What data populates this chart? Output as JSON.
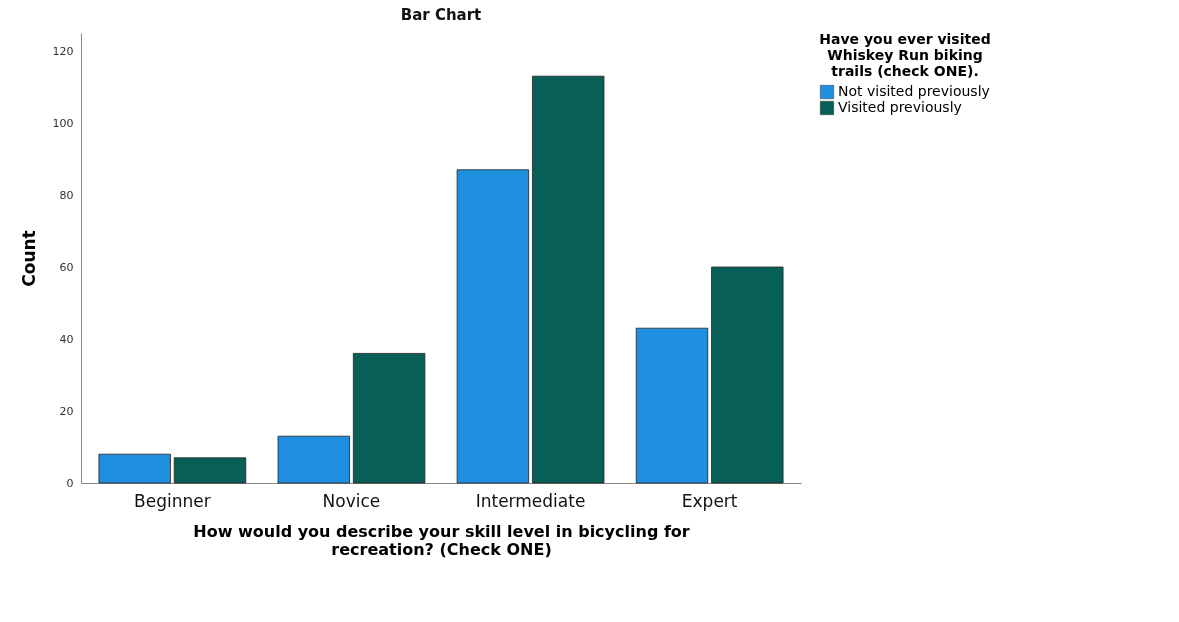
{
  "chart_data": {
    "type": "bar",
    "title": "Bar Chart",
    "xlabel": "How would you describe your skill level in bicycling for recreation? (Check ONE)",
    "ylabel": "Count",
    "legend_title": "Have you ever visited Whiskey Run biking trails (check ONE).",
    "categories": [
      "Beginner",
      "Novice",
      "Intermediate",
      "Expert"
    ],
    "series": [
      {
        "name": "Not visited previously",
        "color": "#1f8fe0",
        "values": [
          8,
          13,
          87,
          43
        ]
      },
      {
        "name": "Visited previously",
        "color": "#075f58",
        "values": [
          7,
          36,
          113,
          60
        ]
      }
    ],
    "ylim": [
      0,
      125
    ],
    "yticks": [
      0,
      20,
      40,
      60,
      80,
      100,
      120
    ],
    "grid": false,
    "legend": "top right"
  }
}
